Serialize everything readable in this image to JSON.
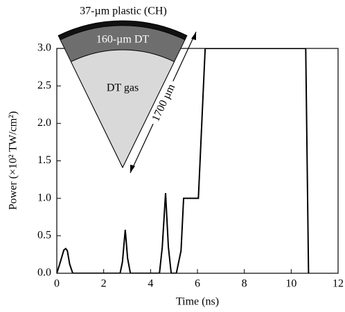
{
  "chart_data": {
    "type": "line",
    "x_label": "Time (ns)",
    "y_label": "Power (×10² TW/cm²)",
    "x": [
      0,
      0.15,
      0.3,
      0.38,
      0.45,
      0.55,
      0.68,
      2.7,
      2.8,
      2.92,
      3.02,
      3.14,
      4.38,
      4.5,
      4.64,
      4.76,
      4.88,
      5.1,
      5.3,
      5.41,
      6.04,
      6.33,
      10.62,
      10.74
    ],
    "values": [
      0,
      0.15,
      0.31,
      0.33,
      0.3,
      0.12,
      0,
      0,
      0.15,
      0.58,
      0.2,
      0,
      0,
      0.35,
      1.07,
      0.35,
      0,
      0,
      0.3,
      1.0,
      1.0,
      3.0,
      3.0,
      0
    ],
    "color": "#000000",
    "xlim": [
      0,
      12
    ],
    "xticks": [
      0,
      2,
      4,
      6,
      8,
      10,
      12
    ],
    "ylim": [
      0,
      3
    ],
    "yticks": [
      {
        "value": 0,
        "label": "0.0"
      },
      0.5,
      {
        "value": 1,
        "label": "1.0"
      },
      1.5,
      {
        "value": 2,
        "label": "2.0"
      },
      2.5,
      {
        "value": 3,
        "label": "3.0"
      }
    ],
    "inset": {
      "outer_layer": "37-µm plastic (CH)",
      "ice_layer": "160-µm DT",
      "core": "DT gas",
      "radius": "1700 µm"
    }
  }
}
